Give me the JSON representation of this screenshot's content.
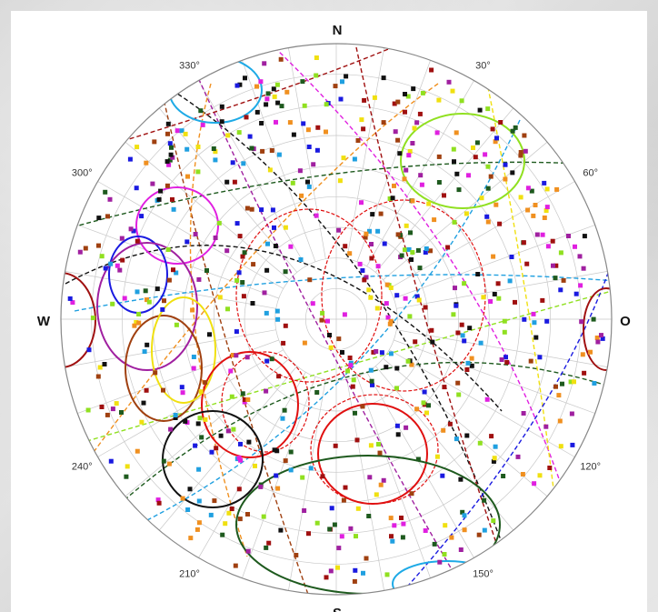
{
  "stereonet": {
    "cardinals": {
      "north": "N",
      "east": "O",
      "south": "S",
      "west": "W"
    },
    "azimuth_labels": [
      {
        "text": "30°",
        "azimuth": 30
      },
      {
        "text": "60°",
        "azimuth": 60
      },
      {
        "text": "120°",
        "azimuth": 120
      },
      {
        "text": "150°",
        "azimuth": 150
      },
      {
        "text": "210°",
        "azimuth": 210
      },
      {
        "text": "240°",
        "azimuth": 240
      },
      {
        "text": "300°",
        "azimuth": 300
      },
      {
        "text": "330°",
        "azimuth": 330
      }
    ],
    "colors": {
      "grid": "#c8c8c8",
      "outline": "#888888",
      "red": "#e01010",
      "black": "#111111",
      "blue": "#1a1ae0",
      "green": "#1e5a1e",
      "magenta": "#e020e0",
      "orange": "#f09020",
      "yellow": "#f0e010",
      "lime": "#90e020",
      "cyan": "#20a0e0",
      "brown": "#a04010",
      "maroon": "#a01010",
      "purple": "#a020a0"
    }
  }
}
